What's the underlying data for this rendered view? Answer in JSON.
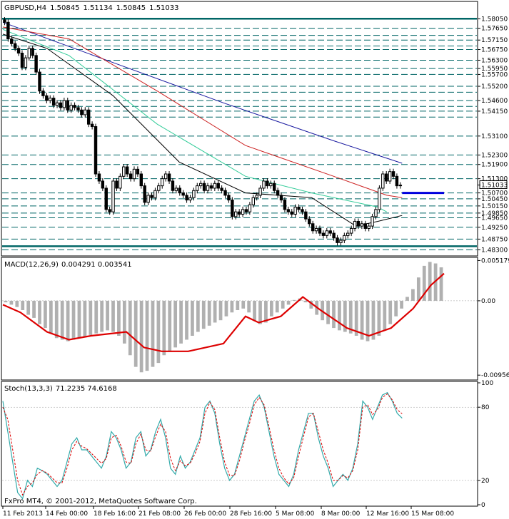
{
  "header": {
    "symbol": "GBPUSD,H4",
    "open": "1.50845",
    "high": "1.51134",
    "low": "1.50845",
    "close": "1.51033"
  },
  "copyright": "FxPro MT4, © 2001-2012, MetaQuotes Software Corp.",
  "colors": {
    "candle": "#000000",
    "level_line": "#006666",
    "ma_blue": "#1a1aa0",
    "ma_red": "#cc2222",
    "ma_green": "#33cc99",
    "ma_black": "#000000",
    "macd_signal": "#dd0000",
    "macd_hist": "#b0b0b0",
    "stoch_main": "#33aaaa",
    "stoch_signal": "#dd0000",
    "current_price_box": "#000000",
    "sr_marker": "#0000dd"
  },
  "chart_data": [
    {
      "type": "candlestick",
      "name": "price",
      "ylim": [
        1.481,
        1.583
      ],
      "price_labels": [
        "1.58050",
        "1.57650",
        "1.57150",
        "1.56750",
        "1.56300",
        "1.55950",
        "1.55700",
        "1.55200",
        "1.54600",
        "1.54150",
        "1.53100",
        "1.52300",
        "1.51900",
        "1.51300",
        "1.51033",
        "1.50700",
        "1.50450",
        "1.50150",
        "1.49850",
        "1.49650",
        "1.49250",
        "1.48750",
        "1.48300"
      ],
      "current_price": "1.51033",
      "levels": {
        "solid": [
          1.5805,
          1.4845
        ],
        "dashed": [
          1.5765,
          1.5735,
          1.5715,
          1.569,
          1.5675,
          1.563,
          1.5595,
          1.557,
          1.552,
          1.5495,
          1.546,
          1.5435,
          1.5415,
          1.539,
          1.531,
          1.523,
          1.519,
          1.513,
          1.507,
          1.5045,
          1.5015,
          1.4985,
          1.4965,
          1.4925,
          1.4875,
          1.483
        ]
      },
      "blue_segment": {
        "from": 0.905,
        "to": 1.0,
        "price": 1.507
      },
      "date_labels": [
        "11 Feb 2013",
        "14 Feb 00:00",
        "18 Feb 16:00",
        "21 Feb 08:00",
        "26 Feb 00:00",
        "28 Feb 16:00",
        "5 Mar 08:00",
        "8 Mar 00:00",
        "12 Mar 16:00",
        "15 Mar 08:00"
      ],
      "closes": [
        1.579,
        1.572,
        1.57,
        1.568,
        1.566,
        1.56,
        1.564,
        1.568,
        1.565,
        1.558,
        1.55,
        1.548,
        1.546,
        1.547,
        1.544,
        1.545,
        1.543,
        1.546,
        1.542,
        1.544,
        1.543,
        1.542,
        1.54,
        1.542,
        1.536,
        1.535,
        1.515,
        1.512,
        1.509,
        1.5,
        1.499,
        1.512,
        1.509,
        1.514,
        1.518,
        1.515,
        1.513,
        1.517,
        1.515,
        1.51,
        1.503,
        1.506,
        1.505,
        1.508,
        1.51,
        1.513,
        1.515,
        1.512,
        1.508,
        1.509,
        1.507,
        1.506,
        1.504,
        1.505,
        1.508,
        1.51,
        1.511,
        1.508,
        1.51,
        1.509,
        1.511,
        1.509,
        1.508,
        1.506,
        1.504,
        1.497,
        1.499,
        1.498,
        1.5,
        1.499,
        1.502,
        1.505,
        1.506,
        1.509,
        1.512,
        1.51,
        1.511,
        1.508,
        1.506,
        1.504,
        1.5,
        1.499,
        1.498,
        1.501,
        1.5,
        1.499,
        1.496,
        1.494,
        1.491,
        1.492,
        1.49,
        1.489,
        1.491,
        1.49,
        1.488,
        1.486,
        1.487,
        1.489,
        1.49,
        1.492,
        1.495,
        1.493,
        1.494,
        1.492,
        1.493,
        1.497,
        1.5,
        1.509,
        1.515,
        1.512,
        1.516,
        1.514,
        1.51,
        1.5103
      ],
      "ma_blue": [
        [
          0,
          1.579
        ],
        [
          0.25,
          1.562
        ],
        [
          0.5,
          1.545
        ],
        [
          0.75,
          1.529
        ],
        [
          0.905,
          1.5195
        ]
      ],
      "ma_red": [
        [
          0,
          1.577
        ],
        [
          0.15,
          1.572
        ],
        [
          0.35,
          1.55
        ],
        [
          0.55,
          1.527
        ],
        [
          0.75,
          1.514
        ],
        [
          0.87,
          1.506
        ],
        [
          0.905,
          1.505
        ]
      ],
      "ma_green": [
        [
          0,
          1.576
        ],
        [
          0.15,
          1.565
        ],
        [
          0.35,
          1.536
        ],
        [
          0.55,
          1.514
        ],
        [
          0.7,
          1.507
        ],
        [
          0.85,
          1.501
        ],
        [
          0.87,
          1.499
        ]
      ],
      "ma_black": [
        [
          0,
          1.574
        ],
        [
          0.1,
          1.568
        ],
        [
          0.25,
          1.548
        ],
        [
          0.4,
          1.52
        ],
        [
          0.55,
          1.507
        ],
        [
          0.7,
          1.505
        ],
        [
          0.8,
          1.493
        ],
        [
          0.85,
          1.495
        ],
        [
          0.905,
          1.4975
        ]
      ]
    },
    {
      "type": "macd",
      "name": "MACD(12,26,9)",
      "title_values": "0.004291 0.003541",
      "ylim": [
        -0.01,
        0.0054
      ],
      "axis_labels": [
        "0.005179",
        "0.00",
        "-0.00956"
      ],
      "histogram": [
        -0.0002,
        -0.0005,
        -0.0008,
        -0.0012,
        -0.0018,
        -0.0022,
        -0.003,
        -0.0035,
        -0.0042,
        -0.0048,
        -0.005,
        -0.0052,
        -0.005,
        -0.0048,
        -0.0046,
        -0.0044,
        -0.0042,
        -0.004,
        -0.0038,
        -0.004,
        -0.0045,
        -0.0055,
        -0.007,
        -0.0085,
        -0.0092,
        -0.009,
        -0.0085,
        -0.008,
        -0.007,
        -0.0065,
        -0.006,
        -0.0055,
        -0.005,
        -0.0045,
        -0.004,
        -0.0036,
        -0.0032,
        -0.0028,
        -0.0025,
        -0.002,
        -0.0015,
        -0.0012,
        -0.001,
        -0.0015,
        -0.0025,
        -0.003,
        -0.0028,
        -0.002,
        -0.0015,
        -0.001,
        -0.0005,
        0.0001,
        0.0003,
        -0.0002,
        -0.001,
        -0.0018,
        -0.0025,
        -0.003,
        -0.0035,
        -0.0038,
        -0.004,
        -0.0042,
        -0.0045,
        -0.005,
        -0.0052,
        -0.005,
        -0.0045,
        -0.0038,
        -0.003,
        -0.002,
        -0.001,
        0.0005,
        0.0015,
        0.003,
        0.0045,
        0.005,
        0.0048,
        0.0043
      ],
      "signal": [
        [
          0,
          -0.0005
        ],
        [
          0.04,
          -0.0015
        ],
        [
          0.1,
          -0.004
        ],
        [
          0.15,
          -0.005
        ],
        [
          0.2,
          -0.0045
        ],
        [
          0.28,
          -0.004
        ],
        [
          0.32,
          -0.006
        ],
        [
          0.36,
          -0.0065
        ],
        [
          0.42,
          -0.0065
        ],
        [
          0.5,
          -0.0055
        ],
        [
          0.55,
          -0.002
        ],
        [
          0.58,
          -0.0028
        ],
        [
          0.63,
          -0.002
        ],
        [
          0.68,
          0.0005
        ],
        [
          0.72,
          -0.0012
        ],
        [
          0.78,
          -0.0035
        ],
        [
          0.83,
          -0.0045
        ],
        [
          0.88,
          -0.0035
        ],
        [
          0.93,
          -0.001
        ],
        [
          0.97,
          0.002
        ],
        [
          1.0,
          0.0035
        ]
      ]
    },
    {
      "type": "stochastic",
      "name": "Stoch(13,3,3)",
      "title_values": "71.2235 74.6168",
      "ylim": [
        0,
        100
      ],
      "axis_labels": [
        "100",
        "80",
        "20",
        "0"
      ],
      "levels": [
        80,
        20
      ],
      "main": [
        85,
        60,
        35,
        10,
        5,
        20,
        15,
        30,
        28,
        25,
        20,
        15,
        20,
        35,
        50,
        55,
        45,
        45,
        40,
        35,
        30,
        40,
        60,
        55,
        45,
        30,
        35,
        55,
        60,
        40,
        45,
        60,
        70,
        55,
        30,
        25,
        40,
        30,
        35,
        45,
        55,
        80,
        85,
        75,
        50,
        30,
        20,
        25,
        40,
        55,
        70,
        85,
        90,
        80,
        60,
        40,
        25,
        20,
        15,
        25,
        45,
        60,
        75,
        75,
        55,
        40,
        30,
        15,
        20,
        25,
        20,
        30,
        50,
        85,
        80,
        70,
        80,
        90,
        92,
        85,
        75,
        71
      ],
      "signal": [
        80,
        70,
        45,
        20,
        8,
        15,
        18,
        25,
        28,
        26,
        22,
        18,
        18,
        30,
        45,
        52,
        48,
        46,
        42,
        38,
        34,
        38,
        55,
        57,
        48,
        35,
        34,
        50,
        58,
        45,
        44,
        56,
        66,
        60,
        38,
        28,
        36,
        32,
        34,
        42,
        52,
        75,
        84,
        78,
        55,
        35,
        24,
        24,
        36,
        52,
        66,
        82,
        88,
        82,
        64,
        45,
        30,
        22,
        17,
        22,
        40,
        56,
        72,
        75,
        60,
        45,
        34,
        20,
        20,
        24,
        22,
        28,
        45,
        80,
        82,
        74,
        78,
        88,
        91,
        86,
        78,
        74.6
      ]
    }
  ]
}
